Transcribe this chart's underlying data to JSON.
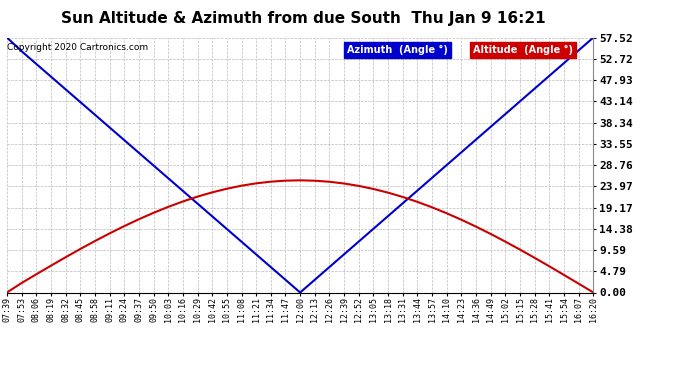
{
  "title": "Sun Altitude & Azimuth from due South  Thu Jan 9 16:21",
  "copyright": "Copyright 2020 Cartronics.com",
  "yticks": [
    0.0,
    4.79,
    9.59,
    14.38,
    19.17,
    23.97,
    28.76,
    33.55,
    38.34,
    43.14,
    47.93,
    52.72,
    57.52
  ],
  "ylim": [
    0.0,
    57.52
  ],
  "time_labels": [
    "07:39",
    "07:53",
    "08:06",
    "08:19",
    "08:32",
    "08:45",
    "08:58",
    "09:11",
    "09:24",
    "09:37",
    "09:50",
    "10:03",
    "10:16",
    "10:29",
    "10:42",
    "10:55",
    "11:08",
    "11:21",
    "11:34",
    "11:47",
    "12:00",
    "12:13",
    "12:26",
    "12:39",
    "12:52",
    "13:05",
    "13:18",
    "13:31",
    "13:44",
    "13:57",
    "14:10",
    "14:23",
    "14:36",
    "14:49",
    "15:02",
    "15:15",
    "15:28",
    "15:41",
    "15:54",
    "16:07",
    "16:20"
  ],
  "azimuth_color": "#0000cc",
  "altitude_color": "#cc0000",
  "background_color": "#ffffff",
  "grid_color": "#bbbbbb",
  "legend_azimuth_bg": "#0000cc",
  "legend_altitude_bg": "#cc0000",
  "legend_text_color": "#ffffff",
  "title_fontsize": 11,
  "ytick_fontsize": 8,
  "xtick_fontsize": 6,
  "line_width": 1.5
}
